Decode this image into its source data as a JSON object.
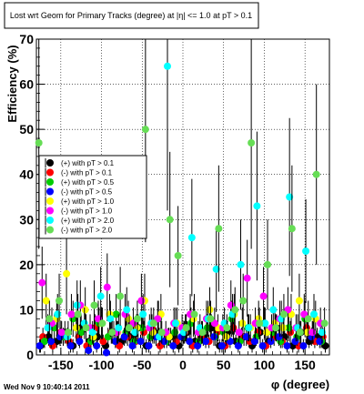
{
  "chart_data": {
    "type": "scatter",
    "title": "Lost wrt Geom for Primary Tracks (degree) at |η| <= 1.0 at pT > 0.1",
    "xlabel": "φ (degree)",
    "ylabel": "Efficiency (%)",
    "xlim": [
      -180,
      180
    ],
    "ylim": [
      0,
      70
    ],
    "x_ticks": [
      -150,
      -100,
      -50,
      0,
      50,
      100,
      150
    ],
    "y_ticks": [
      0,
      10,
      20,
      30,
      40,
      50,
      60,
      70
    ],
    "grid": true,
    "legend_position": "middle-left",
    "timestamp": "Wed Nov  9 10:40:14 2011",
    "series": [
      {
        "name": "(+) with pT > 0.1",
        "color": "#000000",
        "x": [
          -175,
          -165,
          -155,
          -145,
          -135,
          -125,
          -115,
          -105,
          -95,
          -85,
          -75,
          -65,
          -55,
          -45,
          -35,
          -25,
          -15,
          -5,
          5,
          15,
          25,
          35,
          45,
          55,
          65,
          75,
          85,
          95,
          105,
          115,
          125,
          135,
          145,
          155,
          165,
          175
        ],
        "y": [
          2,
          4,
          3,
          5,
          2,
          6,
          3,
          4,
          2,
          5,
          3,
          4,
          6,
          2,
          5,
          3,
          4,
          2,
          5,
          3,
          4,
          6,
          2,
          5,
          3,
          4,
          2,
          5,
          3,
          6,
          4,
          2,
          5,
          3,
          4,
          2
        ]
      },
      {
        "name": "(-) with pT > 0.1",
        "color": "#ff0000",
        "x": [
          -172,
          -160,
          -150,
          -140,
          -128,
          -118,
          -108,
          -98,
          -88,
          -78,
          -68,
          -58,
          -48,
          -38,
          -28,
          -18,
          -8,
          2,
          12,
          22,
          32,
          42,
          52,
          62,
          72,
          82,
          92,
          102,
          112,
          122,
          132,
          142,
          152,
          162,
          172
        ],
        "y": [
          4,
          2,
          5,
          3,
          4,
          2,
          6,
          3,
          5,
          2,
          4,
          3,
          5,
          6,
          2,
          4,
          3,
          5,
          2,
          4,
          3,
          5,
          2,
          6,
          4,
          3,
          5,
          2,
          4,
          3,
          5,
          2,
          6,
          3,
          4
        ]
      },
      {
        "name": "(+) with pT > 0.5",
        "color": "#00cc00",
        "x": [
          -170,
          -158,
          -147,
          -135,
          -125,
          -113,
          -103,
          -92,
          -82,
          -70,
          -60,
          -50,
          -40,
          -30,
          -20,
          -10,
          0,
          10,
          20,
          30,
          40,
          50,
          60,
          70,
          80,
          90,
          100,
          110,
          120,
          130,
          140,
          150,
          160,
          170
        ],
        "y": [
          3,
          6,
          4,
          8,
          5,
          3,
          7,
          4,
          9,
          5,
          3,
          6,
          4,
          8,
          3,
          5,
          4,
          7,
          3,
          6,
          4,
          5,
          8,
          3,
          6,
          4,
          7,
          5,
          3,
          6,
          4,
          8,
          5,
          3
        ]
      },
      {
        "name": "(-) with pT > 0.5",
        "color": "#0000ff",
        "x": [
          -176,
          -162,
          -151,
          -138,
          -127,
          -116,
          -106,
          -94,
          -83,
          -72,
          -62,
          -52,
          -42,
          -33,
          -23,
          -12,
          -2,
          8,
          18,
          28,
          38,
          48,
          58,
          68,
          78,
          88,
          98,
          108,
          118,
          128,
          138,
          148,
          158,
          168
        ],
        "y": [
          2,
          3,
          4,
          2,
          3,
          1,
          2,
          0.5,
          3,
          4,
          2,
          3,
          2,
          4,
          3,
          2,
          4,
          3,
          2,
          3,
          4,
          2,
          3,
          2,
          4,
          3,
          2,
          3,
          4,
          2,
          3,
          2,
          4,
          3
        ]
      },
      {
        "name": "(+) with pT > 1.0",
        "color": "#ffff00",
        "x": [
          -168,
          -155,
          -143,
          -131,
          -120,
          -110,
          -100,
          -90,
          -80,
          -67,
          -57,
          -47,
          -37,
          -27,
          -17,
          -7,
          3,
          13,
          23,
          33,
          43,
          53,
          63,
          73,
          83,
          93,
          103,
          113,
          123,
          133,
          143,
          153,
          163
        ],
        "y": [
          12,
          8,
          18,
          6,
          10,
          4,
          7,
          9,
          5,
          8,
          6,
          12,
          5,
          9,
          4,
          7,
          6,
          8,
          5,
          10,
          6,
          4,
          9,
          7,
          6,
          8,
          5,
          7,
          6,
          9,
          12,
          5,
          8
        ]
      },
      {
        "name": "(-) with pT > 1.0",
        "color": "#ff00ff",
        "x": [
          -173,
          -161,
          -149,
          -137,
          -126,
          -114,
          -104,
          -93,
          -81,
          -71,
          -61,
          -51,
          -41,
          -31,
          -21,
          -11,
          -1,
          9,
          19,
          29,
          39,
          49,
          59,
          69,
          79,
          89,
          99,
          109,
          119,
          129,
          139,
          149,
          159,
          169
        ],
        "y": [
          16,
          7,
          5,
          9,
          11,
          6,
          8,
          15,
          5,
          9,
          7,
          12,
          6,
          8,
          5,
          7,
          6,
          9,
          5,
          8,
          7,
          6,
          11,
          5,
          17,
          7,
          13,
          6,
          8,
          10,
          6,
          9,
          5,
          7
        ]
      },
      {
        "name": "(+) with pT > 2.0",
        "color": "#00ffff",
        "x": [
          -166,
          -154,
          -142,
          -130,
          -121,
          -111,
          -101,
          -89,
          -79,
          -69,
          -59,
          -49,
          -39,
          -29,
          -19,
          -9,
          1,
          11,
          21,
          31,
          41,
          51,
          61,
          71,
          81,
          91,
          101,
          111,
          121,
          131,
          141,
          151,
          161,
          171
        ],
        "y": [
          6,
          9,
          4,
          11,
          7,
          5,
          13,
          8,
          6,
          10,
          5,
          9,
          7,
          4,
          64,
          7,
          5,
          26,
          6,
          8,
          19,
          7,
          9,
          20,
          6,
          33,
          7,
          10,
          8,
          35,
          6,
          23,
          9,
          5
        ]
      },
      {
        "name": "(-) with pT > 2.0",
        "color": "#66dd55",
        "x": [
          -177,
          -164,
          -152,
          -141,
          -129,
          -119,
          -109,
          -99,
          -87,
          -77,
          -66,
          -56,
          -46,
          -36,
          -26,
          -16,
          -6,
          4,
          14,
          24,
          34,
          44,
          54,
          64,
          74,
          84,
          94,
          104,
          114,
          124,
          134,
          144,
          154,
          164,
          174
        ],
        "y": [
          47,
          8,
          12,
          5,
          9,
          6,
          11,
          7,
          5,
          13,
          6,
          8,
          50,
          7,
          5,
          30,
          22,
          6,
          9,
          5,
          8,
          28,
          6,
          10,
          12,
          47,
          7,
          20,
          6,
          9,
          28,
          5,
          8,
          40,
          7
        ]
      }
    ]
  }
}
